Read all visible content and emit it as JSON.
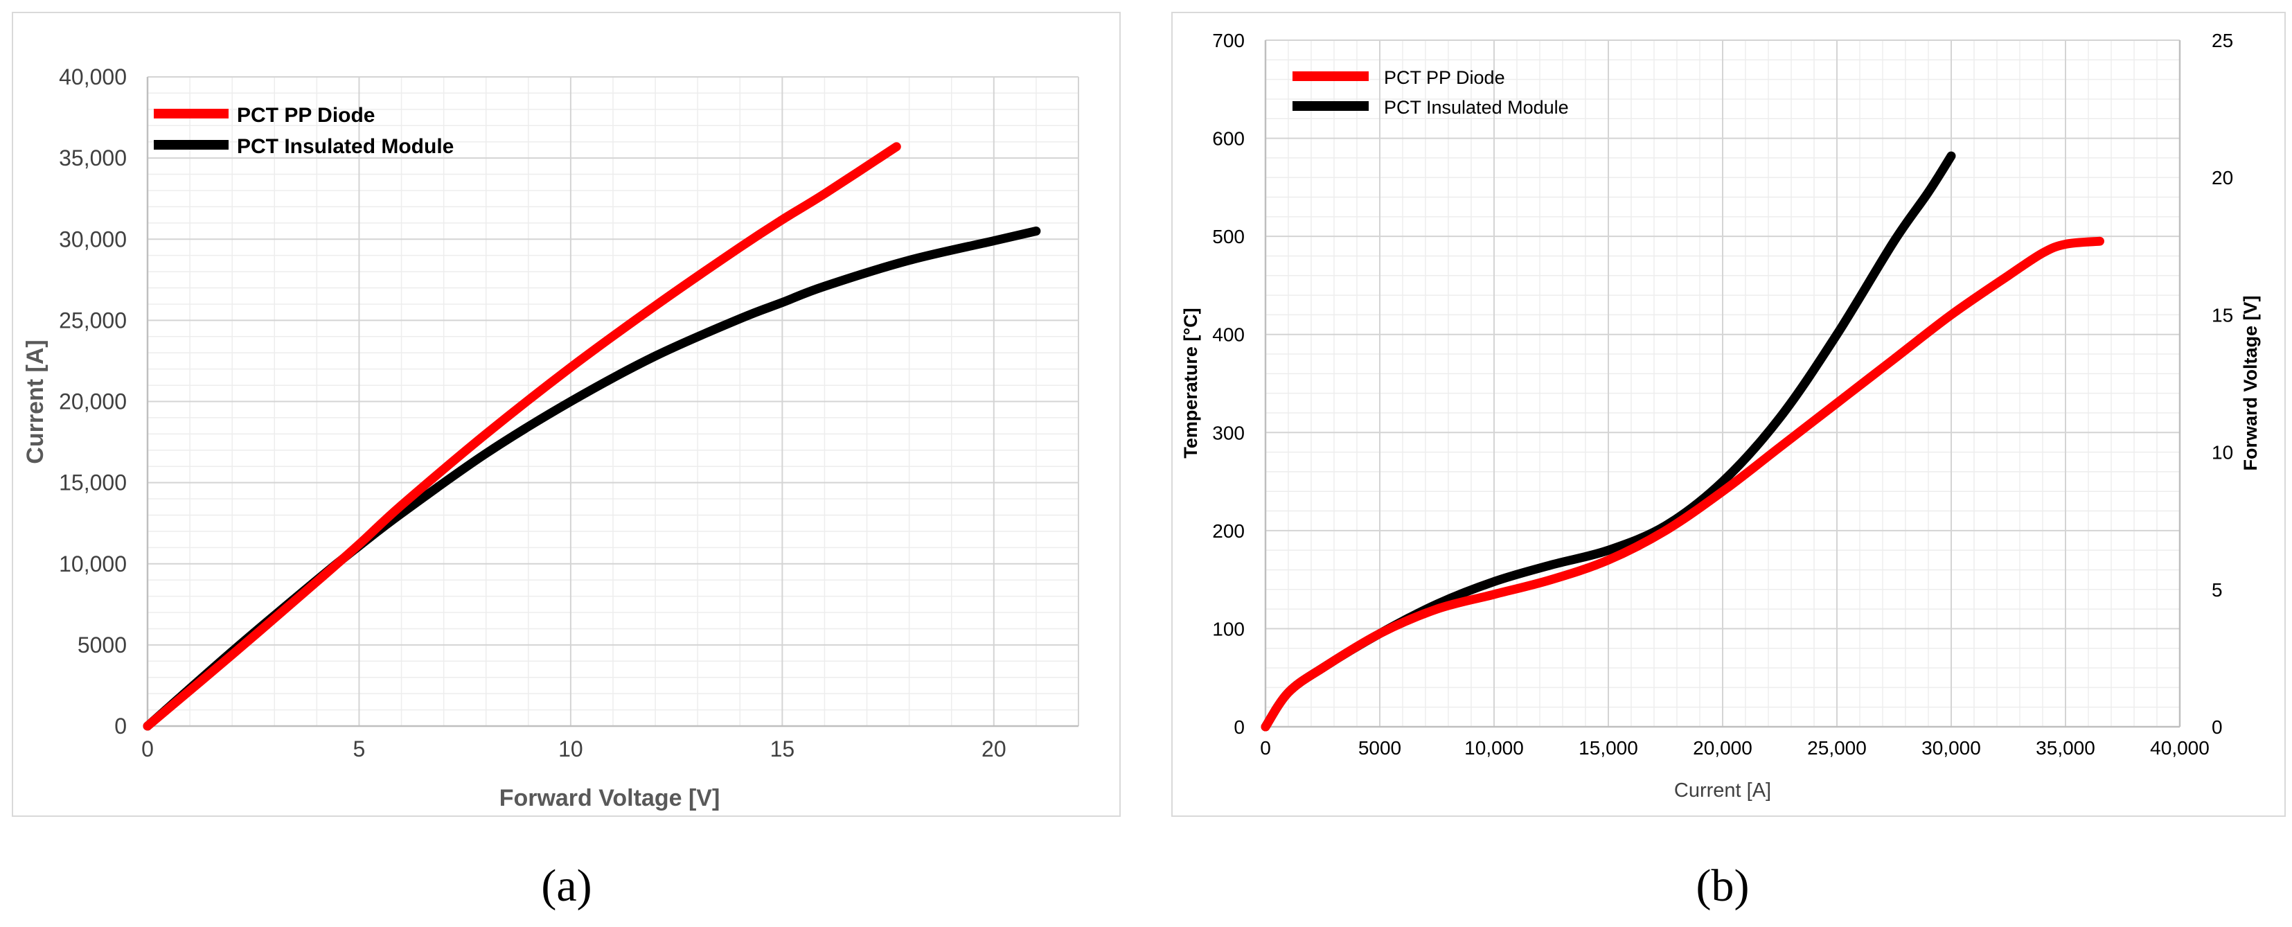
{
  "panels": [
    {
      "caption": "(a)",
      "chart_data": {
        "type": "line",
        "xlabel": "Forward Voltage [V]",
        "ylabel": "Current [A]",
        "xlim": [
          0,
          22
        ],
        "ylim": [
          0,
          40000
        ],
        "x_ticks": [
          0,
          5,
          10,
          15,
          20
        ],
        "x_tick_labels": [
          "0",
          "5",
          "10",
          "15",
          "20"
        ],
        "y_ticks": [
          0,
          5000,
          10000,
          15000,
          20000,
          25000,
          30000,
          35000,
          40000
        ],
        "y_tick_labels": [
          "0",
          "5000",
          "10,000",
          "15,000",
          "20,000",
          "25,000",
          "30,000",
          "35,000",
          "40,000"
        ],
        "grid": true,
        "legend_position": "top-left",
        "series": [
          {
            "name": "PCT PP Diode",
            "color": "#ff0000",
            "x": [
              0,
              2,
              4,
              5,
              6,
              8,
              10,
              12,
              14,
              15,
              16,
              17.7
            ],
            "y": [
              0,
              4400,
              8900,
              11200,
              13600,
              18000,
              22100,
              25900,
              29500,
              31200,
              32800,
              35700
            ]
          },
          {
            "name": "PCT Insulated Module",
            "color": "#000000",
            "x": [
              0,
              2,
              4,
              5,
              6,
              8,
              10,
              12,
              14,
              15,
              16,
              18,
              20,
              21
            ],
            "y": [
              0,
              4600,
              9000,
              11100,
              13100,
              16800,
              20000,
              22800,
              25100,
              26100,
              27100,
              28700,
              29900,
              30500
            ]
          }
        ]
      }
    },
    {
      "caption": "(b)",
      "chart_data": {
        "type": "line",
        "xlabel": "Current [A]",
        "ylabel": "Temperature [°C]",
        "y2label": "Forward Voltage [V]",
        "xlim": [
          0,
          40000
        ],
        "ylim": [
          0,
          700
        ],
        "y2lim": [
          0,
          25
        ],
        "x_ticks": [
          0,
          5000,
          10000,
          15000,
          20000,
          25000,
          30000,
          35000,
          40000
        ],
        "x_tick_labels": [
          "0",
          "5000",
          "10,000",
          "15,000",
          "20,000",
          "25,000",
          "30,000",
          "35,000",
          "40,000"
        ],
        "y_ticks": [
          0,
          100,
          200,
          300,
          400,
          500,
          600,
          700
        ],
        "y_tick_labels": [
          "0",
          "100",
          "200",
          "300",
          "400",
          "500",
          "600",
          "700"
        ],
        "y2_ticks": [
          0,
          5,
          10,
          15,
          20,
          25
        ],
        "y2_tick_labels": [
          "0",
          "5",
          "10",
          "15",
          "20",
          "25"
        ],
        "grid": true,
        "legend_position": "top-left",
        "series": [
          {
            "name": "PCT PP Diode",
            "color": "#ff0000",
            "x": [
              0,
              1000,
              2500,
              5000,
              7500,
              10000,
              12500,
              15000,
              17500,
              20000,
              22500,
              25000,
              27500,
              30000,
              32500,
              34000,
              35000,
              36500
            ],
            "y": [
              0,
              35,
              60,
              95,
              120,
              135,
              150,
              170,
              200,
              240,
              285,
              330,
              375,
              420,
              460,
              483,
              492,
              495
            ]
          },
          {
            "name": "PCT Insulated Module",
            "color": "#000000",
            "x": [
              0,
              1000,
              2500,
              5000,
              7500,
              10000,
              12500,
              15000,
              17500,
              20000,
              22500,
              25000,
              27500,
              29000,
              30000
            ],
            "y": [
              0,
              35,
              60,
              95,
              125,
              148,
              165,
              180,
              205,
              250,
              315,
              400,
              495,
              545,
              582
            ]
          }
        ]
      }
    }
  ]
}
